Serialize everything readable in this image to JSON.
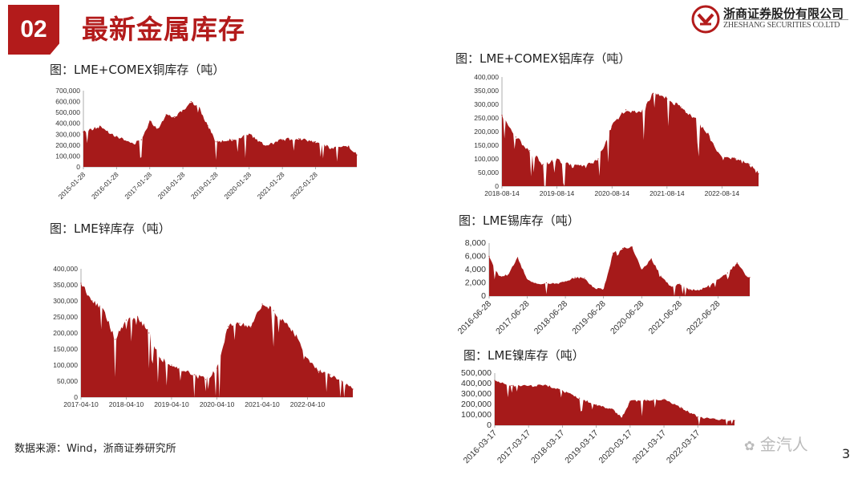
{
  "header": {
    "section_number": "02",
    "section_title": "最新金属库存",
    "logo_cn": "浙商证券股份有限公司",
    "logo_en": "ZHESHANG SECURITIES CO.LTD",
    "logo_icon": "zheshang-logo-icon"
  },
  "footer": {
    "source": "数据来源：Wind，浙商证券研究所",
    "watermark": "金汽人",
    "page_number": "3"
  },
  "colors": {
    "accent": "#b31b1b",
    "area_fill": "#a61a1a"
  },
  "chart_data": [
    {
      "id": "copper",
      "type": "area",
      "title": "图：LME+COMEX铜库存（吨）",
      "x_tick_labels": [
        "2015-01-28",
        "2016-01-28",
        "2017-01-28",
        "2018-01-28",
        "2019-01-28",
        "2020-01-28",
        "2021-01-28",
        "2022-01-28"
      ],
      "y_tick_labels": [
        "0",
        "100,000",
        "200,000",
        "300,000",
        "400,000",
        "500,000",
        "600,000",
        "700,000"
      ],
      "xlim": [
        "2015-01-28",
        "2023-04-28"
      ],
      "ylim": [
        0,
        700000
      ],
      "x": [
        "2015-01-28",
        "2015-07-28",
        "2016-01-28",
        "2016-07-28",
        "2016-10-28",
        "2017-01-28",
        "2017-04-28",
        "2017-07-28",
        "2017-10-28",
        "2018-01-28",
        "2018-04-28",
        "2018-07-28",
        "2018-10-28",
        "2019-01-28",
        "2019-07-28",
        "2020-01-28",
        "2020-07-28",
        "2021-01-28",
        "2021-07-28",
        "2022-01-28",
        "2022-07-28",
        "2023-01-28",
        "2023-04-28"
      ],
      "values": [
        320000,
        370000,
        280000,
        210000,
        250000,
        420000,
        350000,
        480000,
        460000,
        520000,
        600000,
        540000,
        380000,
        230000,
        250000,
        300000,
        190000,
        250000,
        260000,
        230000,
        170000,
        190000,
        110000
      ]
    },
    {
      "id": "aluminum",
      "type": "area",
      "title": "图：LME+COMEX铝库存（吨）",
      "x_tick_labels": [
        "2018-08-14",
        "2019-08-14",
        "2020-08-14",
        "2021-08-14",
        "2022-08-14"
      ],
      "y_tick_labels": [
        "0",
        "50,000",
        "100,000",
        "150,000",
        "200,000",
        "250,000",
        "300,000",
        "350,000",
        "400,000"
      ],
      "xlim": [
        "2018-08-14",
        "2023-04-14"
      ],
      "ylim": [
        0,
        400000
      ],
      "x": [
        "2018-08-14",
        "2018-11-14",
        "2019-02-14",
        "2019-05-14",
        "2019-08-14",
        "2019-11-14",
        "2020-02-14",
        "2020-05-14",
        "2020-08-14",
        "2020-11-14",
        "2021-02-14",
        "2021-05-14",
        "2021-08-14",
        "2021-11-14",
        "2022-02-14",
        "2022-05-14",
        "2022-08-14",
        "2022-11-14",
        "2023-02-14",
        "2023-04-14"
      ],
      "values": [
        260000,
        180000,
        130000,
        80000,
        95000,
        75000,
        70000,
        100000,
        220000,
        280000,
        270000,
        340000,
        320000,
        290000,
        250000,
        190000,
        100000,
        100000,
        80000,
        45000
      ]
    },
    {
      "id": "zinc",
      "type": "area",
      "title": "图：LME锌库存（吨）",
      "x_tick_labels": [
        "2017-04-10",
        "2018-04-10",
        "2019-04-10",
        "2020-04-10",
        "2021-04-10",
        "2022-04-10"
      ],
      "y_tick_labels": [
        "0",
        "50,000",
        "100,000",
        "150,000",
        "200,000",
        "250,000",
        "300,000",
        "350,000",
        "400,000"
      ],
      "xlim": [
        "2017-04-10",
        "2023-04-10"
      ],
      "ylim": [
        0,
        400000
      ],
      "x": [
        "2017-04-10",
        "2017-07-10",
        "2017-10-10",
        "2018-01-10",
        "2018-04-10",
        "2018-07-10",
        "2018-10-10",
        "2019-01-10",
        "2019-04-10",
        "2019-07-10",
        "2019-10-10",
        "2020-01-10",
        "2020-04-10",
        "2020-07-10",
        "2020-10-10",
        "2021-01-10",
        "2021-04-10",
        "2021-07-10",
        "2021-10-10",
        "2022-01-10",
        "2022-04-10",
        "2022-07-10",
        "2022-10-10",
        "2023-01-10",
        "2023-04-10"
      ],
      "values": [
        355000,
        300000,
        270000,
        180000,
        240000,
        250000,
        200000,
        120000,
        100000,
        80000,
        70000,
        55000,
        90000,
        220000,
        230000,
        220000,
        290000,
        270000,
        230000,
        190000,
        120000,
        80000,
        70000,
        50000,
        25000
      ]
    },
    {
      "id": "tin",
      "type": "area",
      "title": "图：LME锡库存（吨）",
      "x_tick_labels": [
        "2016-06-28",
        "2017-06-28",
        "2018-06-28",
        "2019-06-28",
        "2020-06-28",
        "2021-06-28",
        "2022-06-28"
      ],
      "y_tick_labels": [
        "0",
        "2,000",
        "4,000",
        "6,000",
        "8,000"
      ],
      "xlim": [
        "2016-06-28",
        "2023-04-28"
      ],
      "ylim": [
        0,
        8000
      ],
      "x": [
        "2016-06-28",
        "2016-09-28",
        "2016-12-28",
        "2017-03-28",
        "2017-06-28",
        "2017-09-28",
        "2017-12-28",
        "2018-03-28",
        "2018-06-28",
        "2018-09-28",
        "2018-12-28",
        "2019-03-28",
        "2019-06-28",
        "2019-09-28",
        "2019-12-28",
        "2020-03-28",
        "2020-06-28",
        "2020-09-28",
        "2020-12-28",
        "2021-03-28",
        "2021-06-28",
        "2021-09-28",
        "2021-12-28",
        "2022-03-28",
        "2022-06-28",
        "2022-09-28",
        "2022-12-28",
        "2023-03-28",
        "2023-04-28"
      ],
      "values": [
        6000,
        3000,
        3200,
        5800,
        2500,
        1800,
        2000,
        1800,
        2200,
        2800,
        2700,
        1200,
        1000,
        6500,
        7200,
        7400,
        4000,
        5600,
        3000,
        1500,
        1800,
        1000,
        800,
        1500,
        2500,
        3500,
        5000,
        3000,
        2800
      ]
    },
    {
      "id": "nickel",
      "type": "area",
      "title": "图：LME镍库存（吨）",
      "x_tick_labels": [
        "2016-03-17",
        "2017-03-17",
        "2018-03-17",
        "2019-03-17",
        "2020-03-17",
        "2021-03-17",
        "2022-03-17"
      ],
      "y_tick_labels": [
        "0",
        "100,000",
        "200,000",
        "300,000",
        "400,000",
        "500,000"
      ],
      "xlim": [
        "2016-03-17",
        "2023-04-17"
      ],
      "ylim": [
        0,
        500000
      ],
      "x": [
        "2016-03-17",
        "2016-09-17",
        "2017-03-17",
        "2017-09-17",
        "2018-03-17",
        "2018-09-17",
        "2019-03-17",
        "2019-09-17",
        "2019-12-17",
        "2020-03-17",
        "2020-09-17",
        "2021-03-17",
        "2021-09-17",
        "2022-03-17",
        "2022-09-17",
        "2023-04-17"
      ],
      "values": [
        430000,
        380000,
        375000,
        385000,
        330000,
        260000,
        195000,
        150000,
        70000,
        230000,
        240000,
        250000,
        170000,
        80000,
        60000,
        45000
      ]
    }
  ]
}
